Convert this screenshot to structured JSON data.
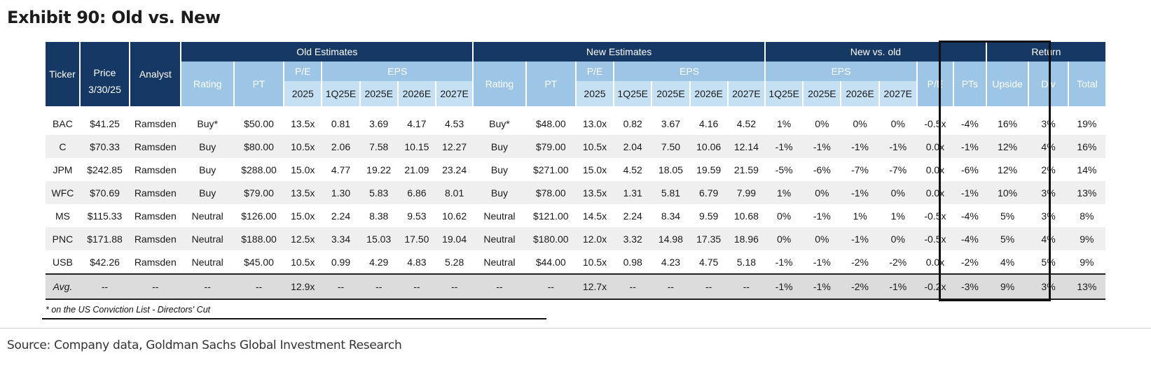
{
  "title": "Exhibit 90: Old vs. New",
  "headers": {
    "ticker": "Ticker",
    "price": "Price",
    "price_date": "3/30/25",
    "analyst": "Analyst",
    "old_estimates": "Old Estimates",
    "new_estimates": "New Estimates",
    "new_vs_old": "New vs. old",
    "return": "Return",
    "rating": "Rating",
    "pt": "PT",
    "pe": "P/E",
    "eps": "EPS",
    "pe_year": "2025",
    "eps_cols": [
      "1Q25E",
      "2025E",
      "2026E",
      "2027E"
    ],
    "pts": "PTs",
    "upside": "Upside",
    "div": "Div",
    "total": "Total"
  },
  "rows": [
    [
      "BAC",
      "$41.25",
      "Ramsden",
      "Buy*",
      "$50.00",
      "13.5x",
      "0.81",
      "3.69",
      "4.17",
      "4.53",
      "Buy*",
      "$48.00",
      "13.0x",
      "0.82",
      "3.67",
      "4.16",
      "4.52",
      "1%",
      "0%",
      "0%",
      "0%",
      "-0.5x",
      "-4%",
      "16%",
      "3%",
      "19%"
    ],
    [
      "C",
      "$70.33",
      "Ramsden",
      "Buy",
      "$80.00",
      "10.5x",
      "2.06",
      "7.58",
      "10.15",
      "12.27",
      "Buy",
      "$79.00",
      "10.5x",
      "2.04",
      "7.50",
      "10.06",
      "12.14",
      "-1%",
      "-1%",
      "-1%",
      "-1%",
      "0.0x",
      "-1%",
      "12%",
      "4%",
      "16%"
    ],
    [
      "JPM",
      "$242.85",
      "Ramsden",
      "Buy",
      "$288.00",
      "15.0x",
      "4.77",
      "19.22",
      "21.09",
      "23.24",
      "Buy",
      "$271.00",
      "15.0x",
      "4.52",
      "18.05",
      "19.59",
      "21.59",
      "-5%",
      "-6%",
      "-7%",
      "-7%",
      "0.0x",
      "-6%",
      "12%",
      "2%",
      "14%"
    ],
    [
      "WFC",
      "$70.69",
      "Ramsden",
      "Buy",
      "$79.00",
      "13.5x",
      "1.30",
      "5.83",
      "6.86",
      "8.01",
      "Buy",
      "$78.00",
      "13.5x",
      "1.31",
      "5.81",
      "6.79",
      "7.99",
      "1%",
      "0%",
      "-1%",
      "0%",
      "0.0x",
      "-1%",
      "10%",
      "3%",
      "13%"
    ],
    [
      "MS",
      "$115.33",
      "Ramsden",
      "Neutral",
      "$126.00",
      "15.0x",
      "2.24",
      "8.38",
      "9.53",
      "10.62",
      "Neutral",
      "$121.00",
      "14.5x",
      "2.24",
      "8.34",
      "9.59",
      "10.68",
      "0%",
      "-1%",
      "1%",
      "1%",
      "-0.5x",
      "-4%",
      "5%",
      "3%",
      "8%"
    ],
    [
      "PNC",
      "$171.88",
      "Ramsden",
      "Neutral",
      "$188.00",
      "12.5x",
      "3.34",
      "15.03",
      "17.50",
      "19.04",
      "Neutral",
      "$180.00",
      "12.0x",
      "3.32",
      "14.98",
      "17.35",
      "18.96",
      "0%",
      "0%",
      "-1%",
      "0%",
      "-0.5x",
      "-4%",
      "5%",
      "4%",
      "9%"
    ],
    [
      "USB",
      "$42.26",
      "Ramsden",
      "Neutral",
      "$45.00",
      "10.5x",
      "0.99",
      "4.29",
      "4.83",
      "5.28",
      "Neutral",
      "$44.00",
      "10.5x",
      "0.98",
      "4.23",
      "4.75",
      "5.18",
      "-1%",
      "-1%",
      "-2%",
      "-2%",
      "0.0x",
      "-2%",
      "4%",
      "5%",
      "9%"
    ]
  ],
  "avg_row": [
    "Avg.",
    "--",
    "--",
    "--",
    "--",
    "12.9x",
    "--",
    "--",
    "--",
    "--",
    "--",
    "--",
    "12.7x",
    "--",
    "--",
    "--",
    "--",
    "-1%",
    "-1%",
    "-2%",
    "-1%",
    "-0.2x",
    "-3%",
    "9%",
    "3%",
    "13%"
  ],
  "footnote": "* on the US Conviction List - Directors' Cut",
  "source": "Source: Company data, Goldman Sachs Global Investment Research"
}
